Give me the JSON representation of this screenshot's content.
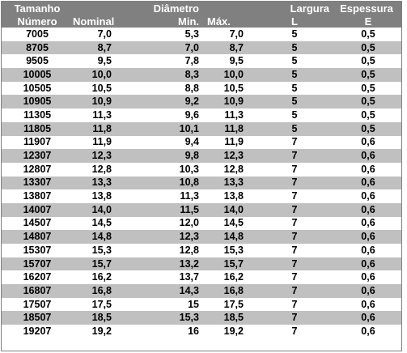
{
  "header": {
    "row1": [
      "Tamanho",
      "",
      "Diâmetro",
      "",
      "Largura",
      "Espessura"
    ],
    "row2": [
      "Número",
      "Nominal",
      "Min.",
      "Máx.",
      "L",
      "E"
    ]
  },
  "rows": [
    [
      "7005",
      "7,0",
      "5,3",
      "7,0",
      "5",
      "0,5"
    ],
    [
      "8705",
      "8,7",
      "7,0",
      "8,7",
      "5",
      "0,5"
    ],
    [
      "9505",
      "9,5",
      "7,8",
      "9,5",
      "5",
      "0,5"
    ],
    [
      "10005",
      "10,0",
      "8,3",
      "10,0",
      "5",
      "0,5"
    ],
    [
      "10505",
      "10,5",
      "8,8",
      "10,5",
      "5",
      "0,5"
    ],
    [
      "10905",
      "10,9",
      "9,2",
      "10,9",
      "5",
      "0,5"
    ],
    [
      "11305",
      "11,3",
      "9,6",
      "11,3",
      "5",
      "0,5"
    ],
    [
      "11805",
      "11,8",
      "10,1",
      "11,8",
      "5",
      "0,5"
    ],
    [
      "11907",
      "11,9",
      "9,4",
      "11,9",
      "7",
      "0,6"
    ],
    [
      "12307",
      "12,3",
      "9,8",
      "12,3",
      "7",
      "0,6"
    ],
    [
      "12807",
      "12,8",
      "10,3",
      "12,8",
      "7",
      "0,6"
    ],
    [
      "13307",
      "13,3",
      "10,8",
      "13,3",
      "7",
      "0,6"
    ],
    [
      "13807",
      "13,8",
      "11,3",
      "13,8",
      "7",
      "0,6"
    ],
    [
      "14007",
      "14,0",
      "11,5",
      "14,0",
      "7",
      "0,6"
    ],
    [
      "14507",
      "14,5",
      "12,0",
      "14,5",
      "7",
      "0,6"
    ],
    [
      "14807",
      "14,8",
      "12,3",
      "14,8",
      "7",
      "0,6"
    ],
    [
      "15307",
      "15,3",
      "12,8",
      "15,3",
      "7",
      "0,6"
    ],
    [
      "15707",
      "15,7",
      "13,2",
      "15,7",
      "7",
      "0,6"
    ],
    [
      "16207",
      "16,2",
      "13,7",
      "16,2",
      "7",
      "0,6"
    ],
    [
      "16807",
      "16,8",
      "14,3",
      "16,8",
      "7",
      "0,6"
    ],
    [
      "17507",
      "17,5",
      "15",
      "17,5",
      "7",
      "0,6"
    ],
    [
      "18507",
      "18,5",
      "15,3",
      "18,5",
      "7",
      "0,6"
    ],
    [
      "19207",
      "19,2",
      "16",
      "19,2",
      "7",
      "0,6"
    ]
  ]
}
